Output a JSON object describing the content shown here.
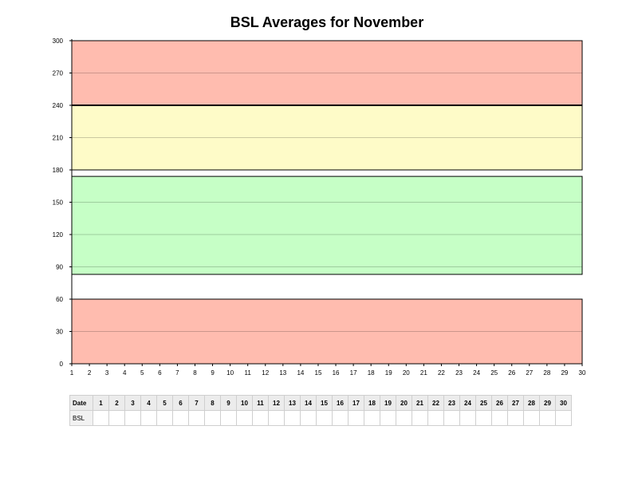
{
  "chart_data": {
    "type": "line",
    "title": "BSL Averages for November",
    "xlabel": "",
    "ylabel": "",
    "xlim": [
      1,
      30
    ],
    "ylim": [
      0,
      300
    ],
    "x_ticks": [
      1,
      2,
      3,
      4,
      5,
      6,
      7,
      8,
      9,
      10,
      11,
      12,
      13,
      14,
      15,
      16,
      17,
      18,
      19,
      20,
      21,
      22,
      23,
      24,
      25,
      26,
      27,
      28,
      29,
      30
    ],
    "y_ticks": [
      0,
      30,
      60,
      90,
      120,
      150,
      180,
      210,
      240,
      270,
      300
    ],
    "bands": [
      {
        "from": 240,
        "to": 300,
        "color": "#ffbcaf"
      },
      {
        "from": 180,
        "to": 240,
        "color": "#fefbc8"
      },
      {
        "from": 83,
        "to": 174,
        "color": "#c6ffc6"
      },
      {
        "from": 0,
        "to": 60,
        "color": "#ffbcaf"
      }
    ],
    "series": [],
    "grid": true
  },
  "table": {
    "row_labels": [
      "Date",
      "BSL"
    ],
    "dates": [
      "1",
      "2",
      "3",
      "4",
      "5",
      "6",
      "7",
      "8",
      "9",
      "10",
      "11",
      "12",
      "13",
      "14",
      "15",
      "16",
      "17",
      "18",
      "19",
      "20",
      "21",
      "22",
      "23",
      "24",
      "25",
      "26",
      "27",
      "28",
      "29",
      "30"
    ],
    "bsl_values": [
      "",
      "",
      "",
      "",
      "",
      "",
      "",
      "",
      "",
      "",
      "",
      "",
      "",
      "",
      "",
      "",
      "",
      "",
      "",
      "",
      "",
      "",
      "",
      "",
      "",
      "",
      "",
      "",
      "",
      ""
    ]
  }
}
